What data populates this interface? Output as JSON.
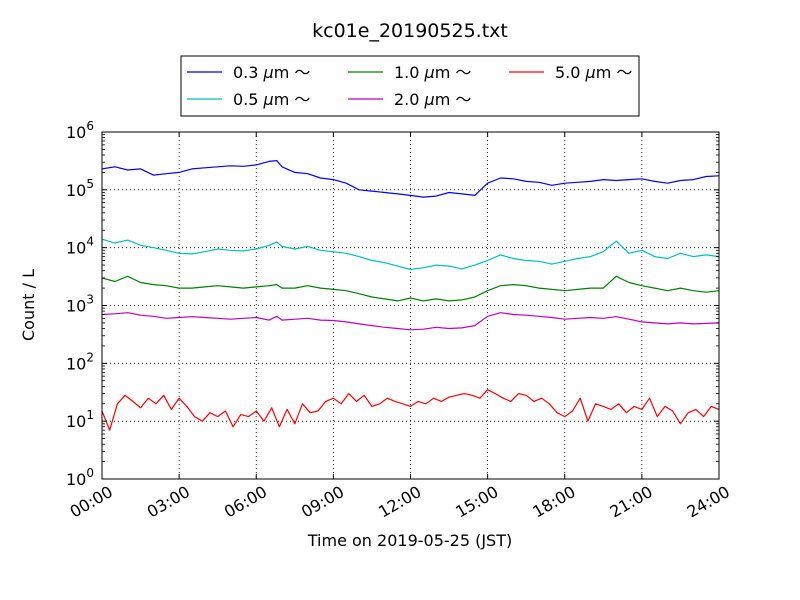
{
  "chart_data": {
    "type": "line",
    "title": "kc01e_20190525.txt",
    "xlabel": "Time on 2019-05-25 (JST)",
    "ylabel": "Count / L",
    "yscale": "log",
    "ylim_exponents": [
      0,
      6
    ],
    "ytick_exponents": [
      0,
      1,
      2,
      3,
      4,
      5,
      6
    ],
    "xlim_hours": [
      0,
      24
    ],
    "xticks": [
      {
        "hour": 0,
        "label": "00:00"
      },
      {
        "hour": 3,
        "label": "03:00"
      },
      {
        "hour": 6,
        "label": "06:00"
      },
      {
        "hour": 9,
        "label": "09:00"
      },
      {
        "hour": 12,
        "label": "12:00"
      },
      {
        "hour": 15,
        "label": "15:00"
      },
      {
        "hour": 18,
        "label": "18:00"
      },
      {
        "hour": 21,
        "label": "21:00"
      },
      {
        "hour": 24,
        "label": "24:00"
      }
    ],
    "grid": true,
    "legend_position": "top-center",
    "series": [
      {
        "name": "0.3 μm ～",
        "legend_size": "0.3",
        "color": "#0000ff",
        "x": [
          0,
          0.5,
          1,
          1.5,
          2,
          2.5,
          3,
          3.5,
          4,
          4.5,
          5,
          5.5,
          6,
          6.5,
          6.8,
          7,
          7.5,
          8,
          8.5,
          9,
          9.5,
          10,
          10.5,
          11,
          11.5,
          12,
          12.5,
          13,
          13.5,
          14,
          14.5,
          15,
          15.5,
          16,
          16.5,
          17,
          17.5,
          18,
          18.5,
          19,
          19.5,
          20,
          20.5,
          21,
          21.5,
          22,
          22.5,
          23,
          23.5,
          24
        ],
        "y": [
          230000,
          250000,
          220000,
          230000,
          180000,
          190000,
          200000,
          230000,
          240000,
          250000,
          260000,
          255000,
          270000,
          310000,
          320000,
          250000,
          200000,
          190000,
          160000,
          150000,
          130000,
          100000,
          95000,
          90000,
          85000,
          80000,
          75000,
          78000,
          90000,
          85000,
          80000,
          130000,
          160000,
          155000,
          140000,
          135000,
          120000,
          130000,
          135000,
          140000,
          150000,
          145000,
          150000,
          155000,
          140000,
          130000,
          145000,
          150000,
          170000,
          175000
        ]
      },
      {
        "name": "0.5 μm ～",
        "legend_size": "0.5",
        "color": "#00bfbf",
        "x": [
          0,
          0.5,
          1,
          1.5,
          2,
          2.5,
          3,
          3.5,
          4,
          4.5,
          5,
          5.5,
          6,
          6.5,
          6.8,
          7,
          7.5,
          8,
          8.5,
          9,
          9.5,
          10,
          10.5,
          11,
          11.5,
          12,
          12.5,
          13,
          13.5,
          14,
          14.5,
          15,
          15.5,
          16,
          16.5,
          17,
          17.5,
          18,
          18.5,
          19,
          19.5,
          20,
          20.5,
          21,
          21.5,
          22,
          22.5,
          23,
          23.5,
          24
        ],
        "y": [
          14000,
          12000,
          13500,
          11000,
          10000,
          9000,
          8000,
          7800,
          8500,
          9500,
          9000,
          8800,
          9500,
          11000,
          12500,
          10500,
          9500,
          10500,
          9000,
          8500,
          8000,
          7000,
          6000,
          5500,
          4800,
          4200,
          4500,
          5000,
          4800,
          4300,
          5000,
          6000,
          7500,
          6500,
          6000,
          5800,
          5200,
          5800,
          6500,
          7000,
          8500,
          13000,
          8000,
          9000,
          7000,
          6500,
          8000,
          7000,
          7500,
          7000
        ]
      },
      {
        "name": "1.0 μm ～",
        "legend_size": "1.0",
        "color": "#008000",
        "x": [
          0,
          0.5,
          1,
          1.5,
          2,
          2.5,
          3,
          3.5,
          4,
          4.5,
          5,
          5.5,
          6,
          6.5,
          6.8,
          7,
          7.5,
          8,
          8.5,
          9,
          9.5,
          10,
          10.5,
          11,
          11.5,
          12,
          12.5,
          13,
          13.5,
          14,
          14.5,
          15,
          15.5,
          16,
          16.5,
          17,
          17.5,
          18,
          18.5,
          19,
          19.5,
          20,
          20.5,
          21,
          21.5,
          22,
          22.5,
          23,
          23.5,
          24
        ],
        "y": [
          3000,
          2600,
          3200,
          2500,
          2300,
          2200,
          2000,
          2000,
          2100,
          2200,
          2100,
          2000,
          2100,
          2200,
          2300,
          2000,
          2000,
          2200,
          2000,
          1900,
          1800,
          1600,
          1400,
          1300,
          1200,
          1350,
          1200,
          1300,
          1200,
          1250,
          1400,
          1800,
          2200,
          2300,
          2200,
          2000,
          1900,
          1800,
          1900,
          2000,
          2000,
          3200,
          2500,
          2200,
          2000,
          1800,
          2000,
          1800,
          1700,
          1800
        ]
      },
      {
        "name": "2.0 μm ～",
        "legend_size": "2.0",
        "color": "#bf00bf",
        "x": [
          0,
          0.5,
          1,
          1.5,
          2,
          2.5,
          3,
          3.5,
          4,
          4.5,
          5,
          5.5,
          6,
          6.5,
          6.8,
          7,
          7.5,
          8,
          8.5,
          9,
          9.5,
          10,
          10.5,
          11,
          11.5,
          12,
          12.5,
          13,
          13.5,
          14,
          14.5,
          15,
          15.5,
          16,
          16.5,
          17,
          17.5,
          18,
          18.5,
          19,
          19.5,
          20,
          20.5,
          21,
          21.5,
          22,
          22.5,
          23,
          23.5,
          24
        ],
        "y": [
          700,
          720,
          750,
          680,
          650,
          600,
          620,
          640,
          620,
          600,
          580,
          600,
          620,
          560,
          650,
          560,
          580,
          600,
          560,
          550,
          520,
          480,
          450,
          420,
          400,
          380,
          390,
          420,
          400,
          410,
          450,
          650,
          750,
          700,
          680,
          650,
          620,
          580,
          600,
          620,
          600,
          640,
          580,
          520,
          500,
          480,
          500,
          480,
          490,
          500
        ]
      },
      {
        "name": "5.0 μm ～",
        "legend_size": "5.0",
        "color": "#ff0000",
        "x": [
          0,
          0.3,
          0.6,
          0.9,
          1.2,
          1.5,
          1.8,
          2.1,
          2.4,
          2.7,
          3,
          3.3,
          3.6,
          3.9,
          4.2,
          4.5,
          4.8,
          5.1,
          5.4,
          5.7,
          6,
          6.3,
          6.6,
          6.9,
          7.2,
          7.5,
          7.8,
          8.1,
          8.4,
          8.7,
          9,
          9.3,
          9.6,
          9.9,
          10.2,
          10.5,
          10.8,
          11.1,
          11.4,
          11.7,
          12,
          12.3,
          12.6,
          12.9,
          13.2,
          13.5,
          13.8,
          14.1,
          14.4,
          14.7,
          15,
          15.3,
          15.6,
          15.9,
          16.2,
          16.5,
          16.8,
          17.1,
          17.4,
          17.7,
          18,
          18.3,
          18.6,
          18.9,
          19.2,
          19.5,
          19.8,
          20.1,
          20.4,
          20.7,
          21,
          21.3,
          21.6,
          21.9,
          22.2,
          22.5,
          22.8,
          23.1,
          23.4,
          23.7,
          24
        ],
        "y": [
          15,
          7,
          20,
          28,
          22,
          17,
          25,
          20,
          28,
          16,
          25,
          18,
          12,
          10,
          14,
          12,
          15,
          8,
          13,
          12,
          15,
          10,
          17,
          8,
          16,
          9,
          20,
          14,
          15,
          22,
          25,
          20,
          30,
          22,
          28,
          18,
          20,
          25,
          22,
          20,
          18,
          22,
          20,
          25,
          22,
          26,
          28,
          30,
          28,
          25,
          35,
          30,
          25,
          22,
          30,
          28,
          22,
          25,
          20,
          14,
          12,
          15,
          25,
          10,
          20,
          18,
          16,
          20,
          14,
          18,
          16,
          25,
          12,
          18,
          15,
          9,
          14,
          16,
          12,
          18,
          16
        ]
      }
    ]
  }
}
